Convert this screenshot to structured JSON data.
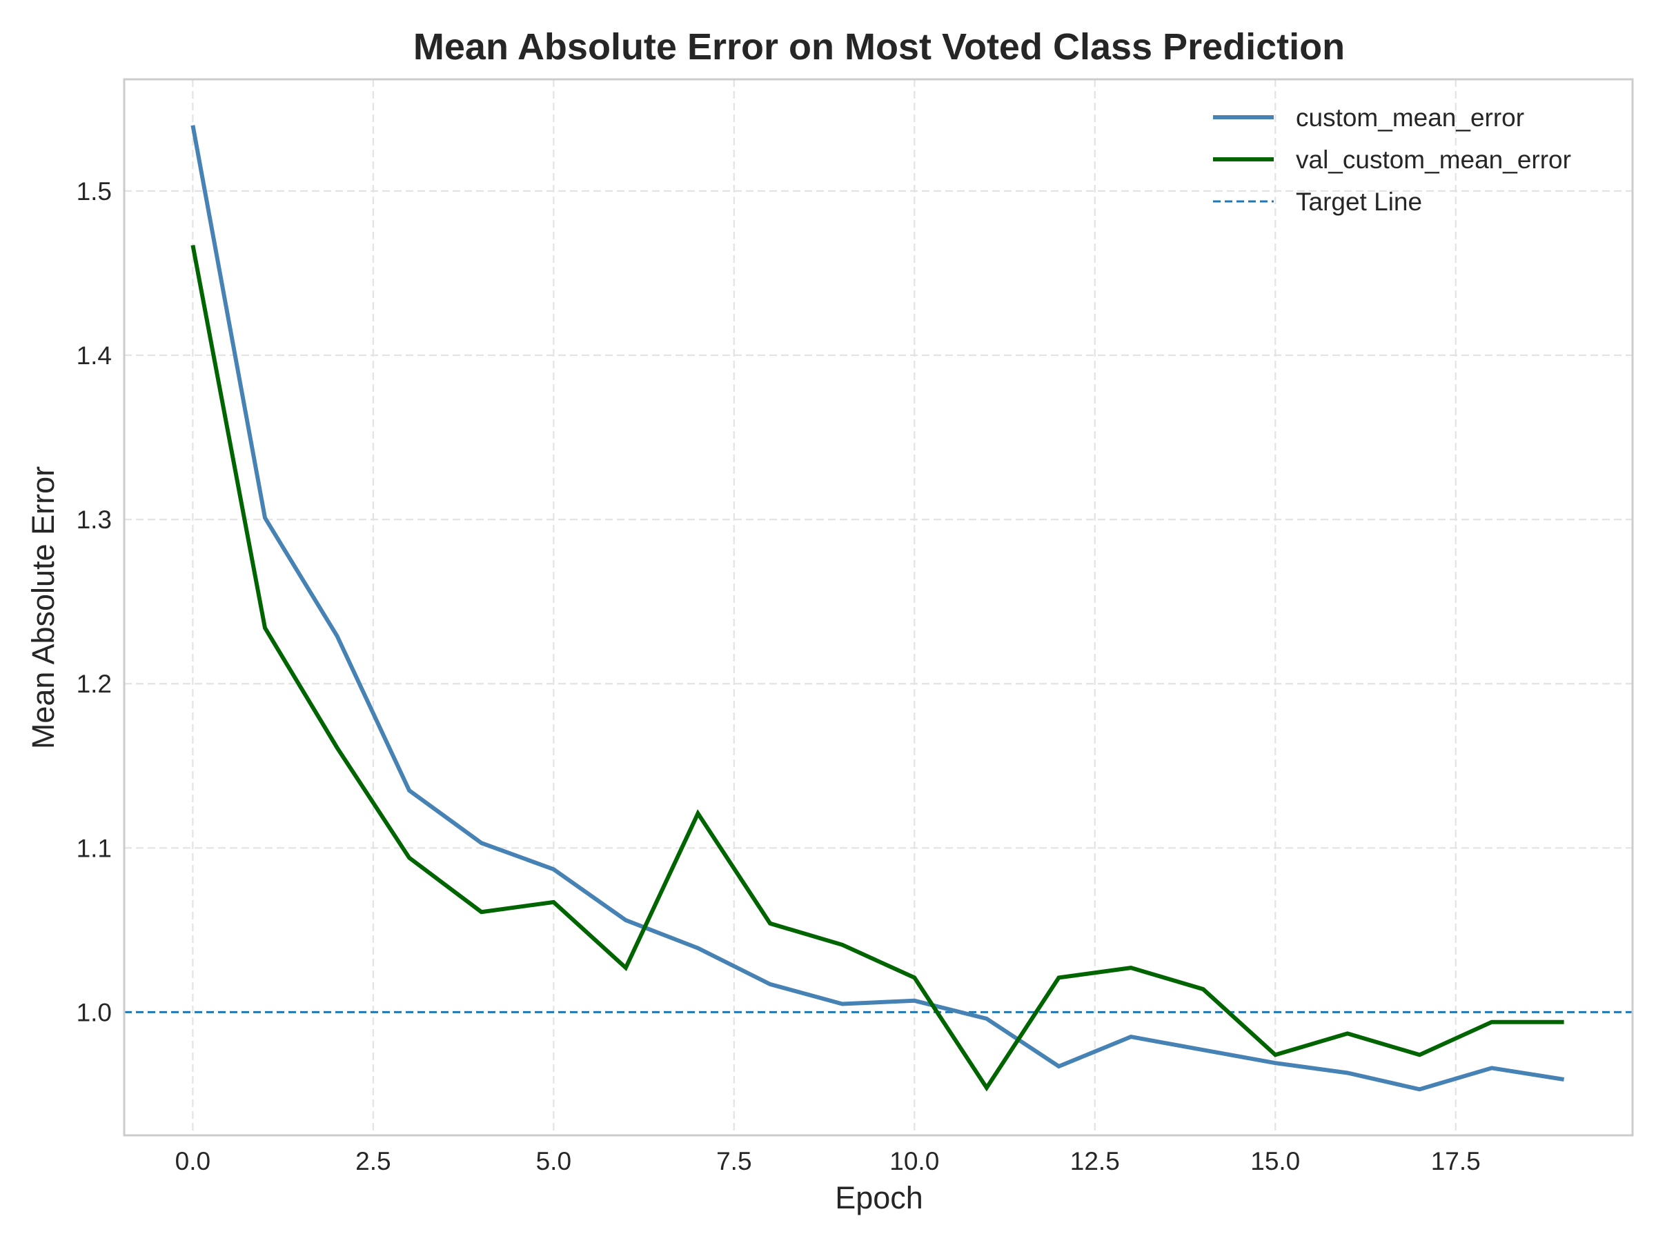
{
  "chart_data": {
    "type": "line",
    "title": "Mean Absolute Error on Most Voted Class Prediction",
    "xlabel": "Epoch",
    "ylabel": "Mean Absolute Error",
    "xlim": [
      -0.95,
      19.95
    ],
    "ylim": [
      0.925,
      1.568
    ],
    "xticks": [
      0,
      2.5,
      5,
      7.5,
      10,
      12.5,
      15,
      17.5
    ],
    "xtick_labels": [
      "0.0",
      "2.5",
      "5.0",
      "7.5",
      "10.0",
      "12.5",
      "15.0",
      "17.5"
    ],
    "yticks": [
      1.0,
      1.1,
      1.2,
      1.3,
      1.4,
      1.5
    ],
    "ytick_labels": [
      "1.0",
      "1.1",
      "1.2",
      "1.3",
      "1.4",
      "1.5"
    ],
    "grid": true,
    "legend_position": "top-right",
    "x": [
      0,
      1,
      2,
      3,
      4,
      5,
      6,
      7,
      8,
      9,
      10,
      11,
      12,
      13,
      14,
      15,
      16,
      17,
      18,
      19
    ],
    "series": [
      {
        "name": "custom_mean_error",
        "color": "#4682b4",
        "style": "solid",
        "values": [
          1.54,
          1.301,
          1.229,
          1.135,
          1.103,
          1.087,
          1.056,
          1.039,
          1.017,
          1.005,
          1.007,
          0.996,
          0.967,
          0.985,
          0.977,
          0.969,
          0.963,
          0.953,
          0.966,
          0.959
        ]
      },
      {
        "name": "val_custom_mean_error",
        "color": "#006400",
        "style": "solid",
        "values": [
          1.467,
          1.234,
          1.161,
          1.094,
          1.061,
          1.067,
          1.027,
          1.121,
          1.054,
          1.041,
          1.021,
          0.954,
          1.021,
          1.027,
          1.014,
          0.974,
          0.987,
          0.974,
          0.994,
          0.994
        ]
      }
    ],
    "reference_lines": [
      {
        "name": "Target Line",
        "axis": "y",
        "value": 1.0,
        "color": "#1f77b4",
        "style": "dashed"
      }
    ]
  }
}
